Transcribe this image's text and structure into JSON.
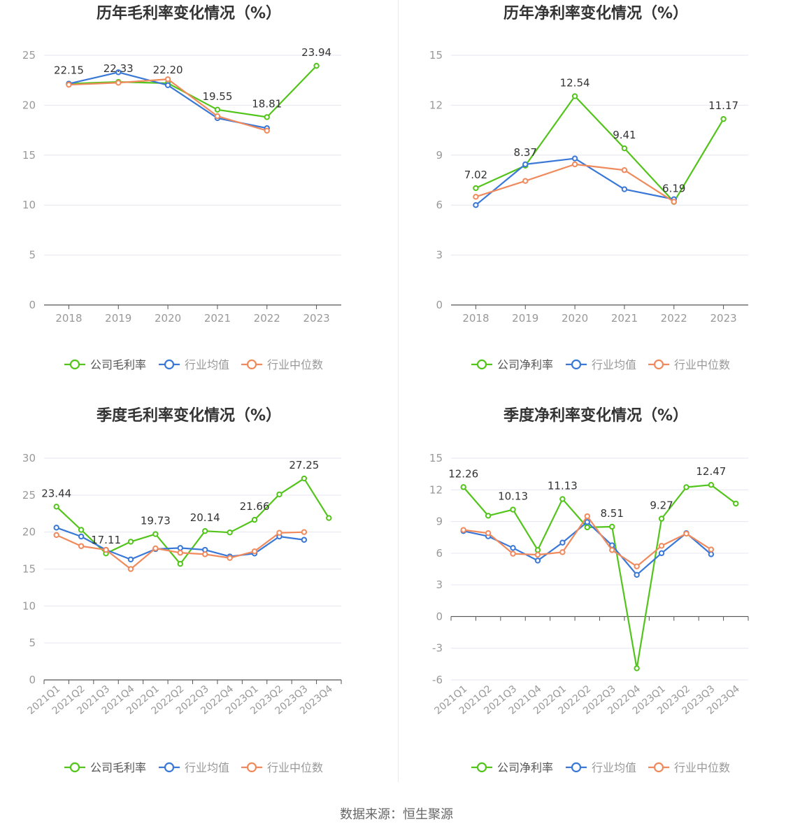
{
  "source_text": "数据来源：恒生聚源",
  "legend_labels": {
    "industry_avg": "行业均值",
    "industry_median": "行业中位数"
  },
  "colors": {
    "company": "#52c41a",
    "industry_avg": "#3a78d8",
    "industry_median": "#f08a5d",
    "grid": "#e6e6f0",
    "axis": "#555555",
    "tick_text": "#999999",
    "title": "#333333",
    "label_text": "#333333"
  },
  "chart_data": [
    {
      "type": "line",
      "title": "历年毛利率变化情况（%）",
      "x": [
        "2018",
        "2019",
        "2020",
        "2021",
        "2022",
        "2023"
      ],
      "ylim": [
        0,
        25
      ],
      "yticks": [
        "0",
        "5",
        "10",
        "15",
        "20",
        "25"
      ],
      "series": [
        {
          "name": "公司毛利率",
          "role": "company",
          "values": [
            22.15,
            22.33,
            22.2,
            19.55,
            18.81,
            23.94
          ],
          "labels": [
            "22.15",
            "22.33",
            "22.20",
            "19.55",
            "18.81",
            "23.94"
          ]
        },
        {
          "name": "行业均值",
          "role": "industry_avg",
          "values": [
            22.15,
            23.3,
            22.0,
            18.7,
            17.7,
            null
          ]
        },
        {
          "name": "行业中位数",
          "role": "industry_median",
          "values": [
            22.05,
            22.25,
            22.6,
            18.9,
            17.45,
            null
          ]
        }
      ]
    },
    {
      "type": "line",
      "title": "历年净利率变化情况（%）",
      "x": [
        "2018",
        "2019",
        "2020",
        "2021",
        "2022",
        "2023"
      ],
      "ylim": [
        0,
        15
      ],
      "yticks": [
        "0",
        "3",
        "6",
        "9",
        "12",
        "15"
      ],
      "series": [
        {
          "name": "公司净利率",
          "role": "company",
          "values": [
            7.02,
            8.37,
            12.54,
            9.41,
            6.19,
            11.17
          ],
          "labels": [
            "7.02",
            "8.37",
            "12.54",
            "9.41",
            "6.19",
            "11.17"
          ]
        },
        {
          "name": "行业均值",
          "role": "industry_avg",
          "values": [
            6.0,
            8.45,
            8.8,
            6.95,
            6.35,
            null
          ]
        },
        {
          "name": "行业中位数",
          "role": "industry_median",
          "values": [
            6.5,
            7.45,
            8.45,
            8.1,
            6.2,
            null
          ]
        }
      ]
    },
    {
      "type": "line",
      "title": "季度毛利率变化情况（%）",
      "x": [
        "2021Q1",
        "2021Q2",
        "2021Q3",
        "2021Q4",
        "2022Q1",
        "2022Q2",
        "2022Q3",
        "2022Q4",
        "2023Q1",
        "2023Q2",
        "2023Q3",
        "2023Q4"
      ],
      "ylim": [
        0,
        30
      ],
      "yticks": [
        "0",
        "5",
        "10",
        "15",
        "20",
        "25",
        "30"
      ],
      "series": [
        {
          "name": "公司毛利率",
          "role": "company",
          "values": [
            23.44,
            20.3,
            17.11,
            18.7,
            19.73,
            15.7,
            20.14,
            19.95,
            21.66,
            25.1,
            27.25,
            21.9
          ],
          "labels": [
            "23.44",
            "",
            "17.11",
            "",
            "19.73",
            "",
            "20.14",
            "",
            "21.66",
            "",
            "27.25",
            ""
          ]
        },
        {
          "name": "行业均值",
          "role": "industry_avg",
          "values": [
            20.6,
            19.4,
            17.6,
            16.3,
            17.7,
            17.85,
            17.6,
            16.7,
            17.1,
            19.4,
            18.95,
            null
          ]
        },
        {
          "name": "行业中位数",
          "role": "industry_median",
          "values": [
            19.6,
            18.1,
            17.6,
            15.0,
            17.8,
            17.2,
            17.0,
            16.5,
            17.4,
            19.9,
            20.0,
            null
          ]
        }
      ]
    },
    {
      "type": "line",
      "title": "季度净利率变化情况（%）",
      "x": [
        "2021Q1",
        "2021Q2",
        "2021Q3",
        "2021Q4",
        "2022Q1",
        "2022Q2",
        "2022Q3",
        "2022Q4",
        "2023Q1",
        "2023Q2",
        "2023Q3",
        "2023Q4"
      ],
      "ylim": [
        -6,
        15
      ],
      "yticks": [
        "-6",
        "-3",
        "0",
        "3",
        "6",
        "9",
        "12",
        "15"
      ],
      "series": [
        {
          "name": "公司净利率",
          "role": "company",
          "values": [
            12.26,
            9.55,
            10.13,
            6.3,
            11.13,
            8.45,
            8.51,
            -4.9,
            9.27,
            12.25,
            12.47,
            10.7
          ],
          "labels": [
            "12.26",
            "",
            "10.13",
            "",
            "11.13",
            "",
            "8.51",
            "",
            "9.27",
            "",
            "12.47",
            ""
          ]
        },
        {
          "name": "行业均值",
          "role": "industry_avg",
          "values": [
            8.1,
            7.6,
            6.5,
            5.3,
            7.0,
            8.95,
            6.75,
            3.95,
            6.0,
            7.9,
            5.9,
            null
          ]
        },
        {
          "name": "行业中位数",
          "role": "industry_median",
          "values": [
            8.2,
            7.9,
            5.95,
            5.85,
            6.1,
            9.5,
            6.3,
            4.75,
            6.7,
            7.85,
            6.35,
            null
          ]
        }
      ]
    }
  ]
}
